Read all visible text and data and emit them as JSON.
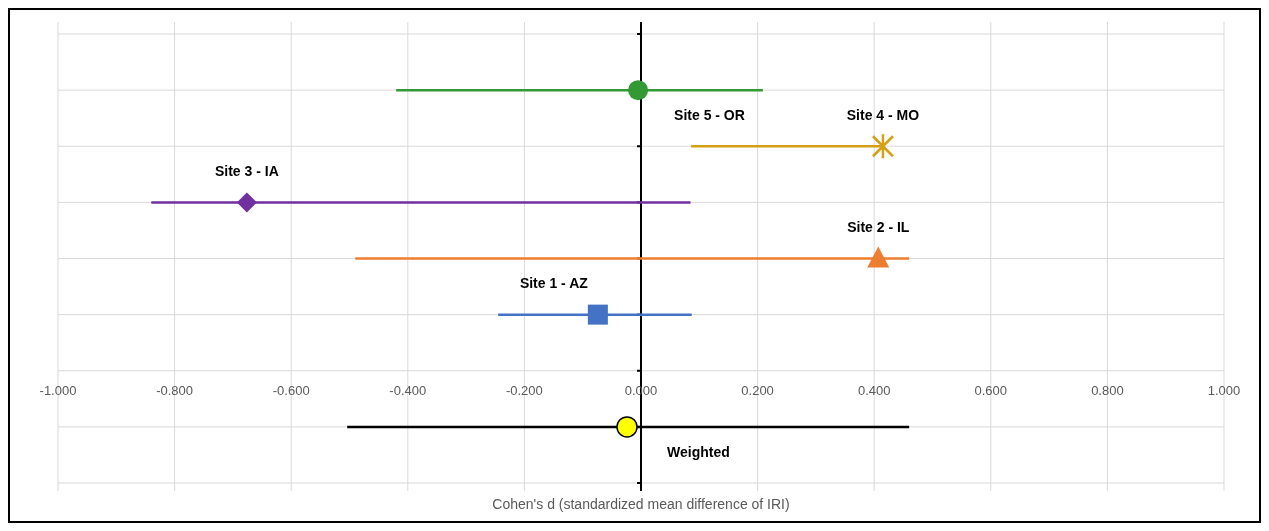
{
  "chart_data": {
    "type": "scatter",
    "orientation": "horizontal",
    "xlabel": "Cohen's d (standardized mean difference of IRI)",
    "categories": [
      null,
      null,
      null,
      null,
      null,
      null,
      null,
      null,
      null
    ],
    "xlim": [
      -1,
      1
    ],
    "xticks": [
      {
        "value": -1,
        "label": "-1.000"
      },
      {
        "value": -0.8,
        "label": "-0.800"
      },
      {
        "value": -0.6,
        "label": "-0.600"
      },
      {
        "value": -0.4,
        "label": "-0.400"
      },
      {
        "value": -0.2,
        "label": "-0.200"
      },
      {
        "value": 0,
        "label": "0.000"
      },
      {
        "value": 0.2,
        "label": "0.200"
      },
      {
        "value": 0.4,
        "label": "0.400"
      },
      {
        "value": 0.6,
        "label": "0.600"
      },
      {
        "value": 0.8,
        "label": "0.800"
      },
      {
        "value": 1,
        "label": "1.000"
      }
    ],
    "grid": true,
    "series": [
      {
        "name": "Site 1 - AZ",
        "color": "#4472c4",
        "marker": "square",
        "values": [
          null,
          null,
          null,
          null,
          null,
          -0.074,
          null,
          null,
          null
        ],
        "errors": [
          null,
          null,
          null,
          null,
          null,
          [
            -0.245,
            0.087
          ],
          null,
          null,
          null
        ]
      },
      {
        "name": "Site 2 - IL",
        "color": "#ed7d31",
        "marker": "triangle",
        "values": [
          null,
          null,
          null,
          null,
          0.407,
          null,
          null,
          null,
          null
        ],
        "errors": [
          null,
          null,
          null,
          null,
          [
            -0.49,
            0.46
          ],
          null,
          null,
          null,
          null
        ]
      },
      {
        "name": "Site 3 - IA",
        "color": "#7030a0",
        "marker": "diamond",
        "values": [
          null,
          null,
          null,
          -0.676,
          null,
          null,
          null,
          null,
          null
        ],
        "errors": [
          null,
          null,
          null,
          [
            -0.84,
            0.085
          ],
          null,
          null,
          null,
          null,
          null
        ]
      },
      {
        "name": "Site 4 - MO",
        "color": "#d4a017",
        "marker": "cross",
        "values": [
          null,
          null,
          0.415,
          null,
          null,
          null,
          null,
          null,
          null
        ],
        "errors": [
          null,
          null,
          [
            0.086,
            0.415
          ],
          null,
          null,
          null,
          null,
          null,
          null
        ]
      },
      {
        "name": "Site 5 - OR",
        "color": "#339933",
        "marker": "circle",
        "values": [
          null,
          -0.005,
          null,
          null,
          null,
          null,
          null,
          null,
          null
        ],
        "errors": [
          null,
          [
            -0.42,
            0.209
          ],
          null,
          null,
          null,
          null,
          null,
          null,
          null
        ]
      },
      {
        "name": "Weighted",
        "color": "#000000",
        "colors": [
          null,
          null,
          null,
          null,
          null,
          null,
          null,
          "#ffff00",
          null
        ],
        "marker": "circle",
        "values": [
          null,
          null,
          null,
          null,
          null,
          null,
          null,
          -0.024,
          null
        ],
        "errors": [
          null,
          null,
          null,
          null,
          null,
          null,
          null,
          [
            -0.504,
            0.46
          ],
          null
        ]
      }
    ]
  }
}
